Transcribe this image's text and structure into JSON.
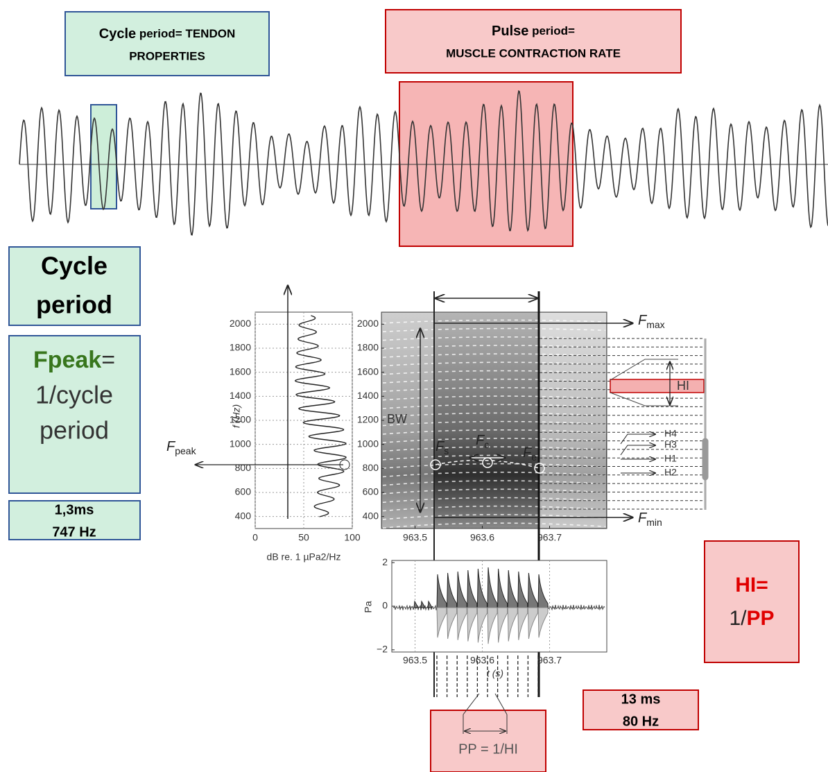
{
  "top_labels": {
    "cycle_box": {
      "lead": "Cycle",
      "rest": " period= TENDON",
      "line2": "PROPERTIES"
    },
    "pulse_box": {
      "lead": "Pulse",
      "rest": " period=",
      "line2": "MUSCLE CONTRACTION RATE"
    }
  },
  "left_panel": {
    "cycle_period": [
      "Cycle",
      "period"
    ],
    "fpeak": {
      "name": "Fpeak",
      "eq": "=",
      "lines": [
        "1/cycle",
        "period"
      ]
    },
    "measure": [
      "1,3ms",
      "747 Hz"
    ]
  },
  "right_panel": {
    "hi": {
      "name": "HI=",
      "prefix": "1/",
      "pp": "PP"
    },
    "measure": [
      "13 ms",
      "80 Hz"
    ],
    "pp_box": "PP = 1/HI"
  },
  "spectrum": {
    "ylabel": "f (Hz)",
    "xlabel": "dB re. 1 µPa2/Hz",
    "xlim": [
      0,
      100
    ],
    "xticks": [
      0,
      50,
      100
    ],
    "ylim": [
      300,
      2100
    ],
    "yticks": [
      400,
      600,
      800,
      1000,
      1200,
      1400,
      1600,
      1800,
      2000
    ],
    "annotation": {
      "main": "F",
      "sub": "peak"
    }
  },
  "spectrogram": {
    "xlim": [
      963.45,
      963.785
    ],
    "xticks": [
      963.5,
      963.6,
      963.7
    ],
    "ylim": [
      300,
      2100
    ],
    "yticks": [
      400,
      600,
      800,
      1000,
      1200,
      1400,
      1600,
      1800,
      2000
    ],
    "labels": {
      "bw": "BW",
      "fs": {
        "main": "F",
        "sub": "s"
      },
      "fc": {
        "main": "F",
        "sub": "c"
      },
      "fe": {
        "main": "F",
        "sub": "e"
      },
      "fmax": {
        "main": "F",
        "sub": "max"
      },
      "fmin": {
        "main": "F",
        "sub": "min"
      },
      "hi": "HI",
      "harmonics": [
        "H4",
        "H3",
        "H1",
        "H2"
      ]
    }
  },
  "oscillogram": {
    "ylabel": "Pa",
    "xlabel": "t (s)",
    "xlim": [
      963.45,
      963.785
    ],
    "xticks": [
      963.5,
      963.6,
      963.7
    ],
    "ylim": [
      -2.1,
      2.1
    ],
    "yticks": [
      2,
      0,
      {
        "value": -2,
        "label": "−2"
      }
    ]
  }
}
